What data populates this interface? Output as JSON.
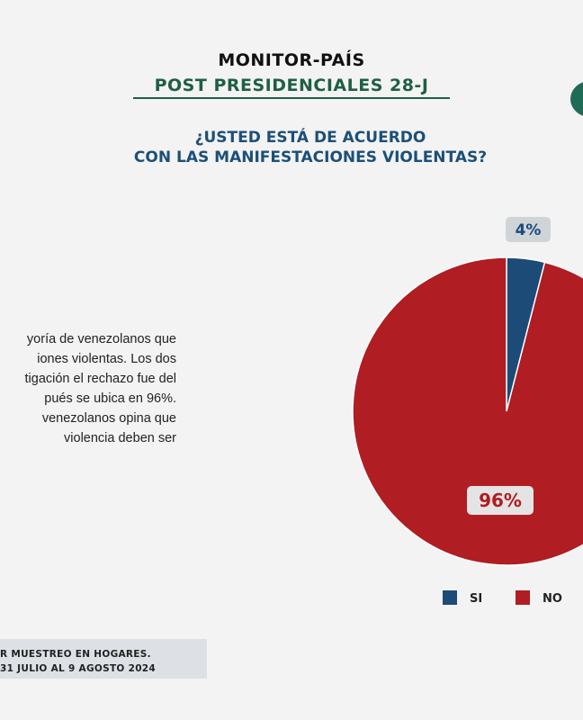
{
  "header": {
    "title": "MONITOR-PAÍS",
    "subtitle": "POST PRESIDENCIALES 28-J"
  },
  "question": {
    "line1": "¿USTED ESTÁ DE ACUERDO",
    "line2": "CON LAS MANIFESTACIONES VIOLENTAS?"
  },
  "body_text": {
    "lines": [
      "yoría de venezolanos que",
      "iones violentas. Los dos",
      "tigación el rechazo fue del",
      "pués se ubica en 96%.",
      "venezolanos opina que",
      "violencia deben ser"
    ]
  },
  "footer": {
    "line1": "R MUESTREO EN HOGARES.",
    "line2": "31 JULIO AL 9 AGOSTO 2024"
  },
  "chart_data": {
    "type": "pie",
    "categories": [
      "SI",
      "NO"
    ],
    "values": [
      4,
      96
    ],
    "labels": [
      "4%",
      "96%"
    ],
    "colors": {
      "SI": "#1c4b78",
      "NO": "#b01d22"
    },
    "legend": [
      "SI",
      "NO"
    ],
    "legend_placement": "bottom"
  }
}
